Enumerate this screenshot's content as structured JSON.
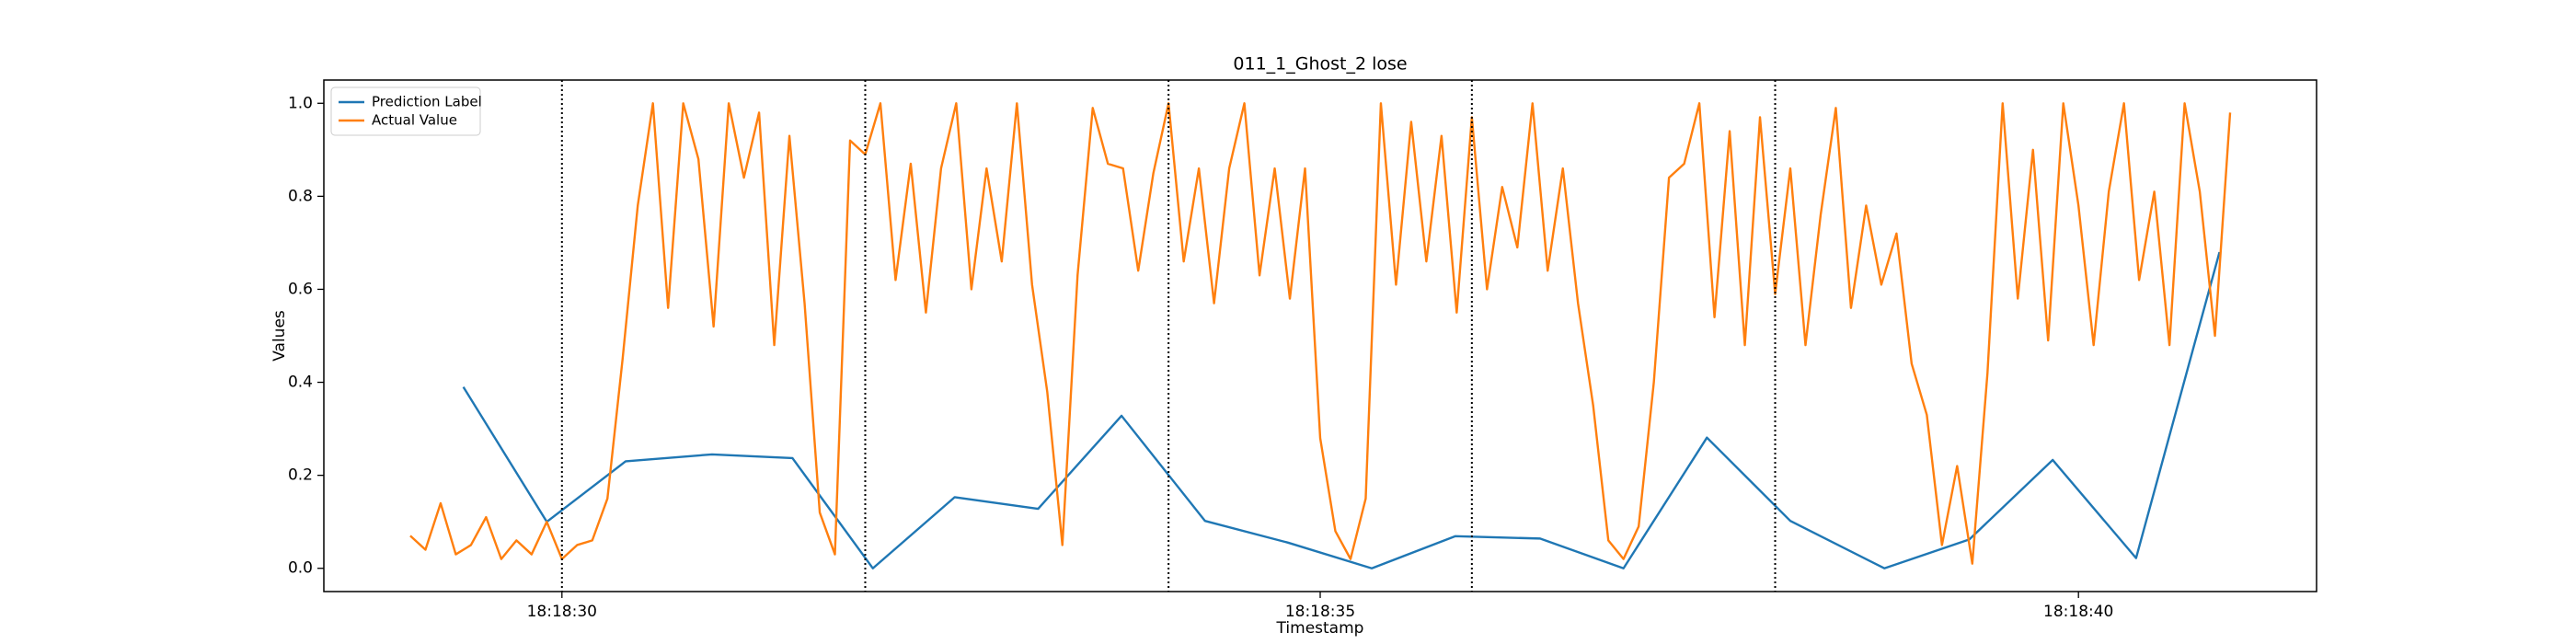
{
  "chart_data": {
    "type": "line",
    "title": "011_1_Ghost_2 lose",
    "x_label": "Timestamp",
    "y_label": "Values",
    "xlim": [
      28.43,
      41.57
    ],
    "ylim": [
      -0.05,
      1.05
    ],
    "xticks": [
      {
        "value": 30,
        "label": "18:18:30"
      },
      {
        "value": 35,
        "label": "18:18:35"
      },
      {
        "value": 40,
        "label": "18:18:40"
      }
    ],
    "yticks": [
      {
        "value": 0,
        "label": "0.0"
      },
      {
        "value": 0.2,
        "label": "0.2"
      },
      {
        "value": 0.4,
        "label": "0.4"
      },
      {
        "value": 0.6,
        "label": "0.6"
      },
      {
        "value": 0.8,
        "label": "0.8"
      },
      {
        "value": 1,
        "label": "1.0"
      }
    ],
    "vlines": [
      30,
      32,
      34,
      36,
      38
    ],
    "legend": "upper left",
    "series": [
      {
        "name": "Prediction Label",
        "color": "#1f77b4",
        "x": [
          29.35,
          29.9,
          30.42,
          30.99,
          31.52,
          32.05,
          32.59,
          33.14,
          33.69,
          34.24,
          34.79,
          35.34,
          35.89,
          36.45,
          37.0,
          37.55,
          38.1,
          38.72,
          39.28,
          39.83,
          40.38,
          40.93
        ],
        "values": [
          0.39,
          0.1,
          0.23,
          0.245,
          0.237,
          0.0,
          0.153,
          0.128,
          0.328,
          0.102,
          0.055,
          0.0,
          0.069,
          0.064,
          0.0,
          0.281,
          0.102,
          0.0,
          0.062,
          0.233,
          0.022,
          0.68
        ]
      },
      {
        "name": "Actual Value",
        "color": "#ff7f0e",
        "x": [
          29.0,
          29.1,
          29.2,
          29.3,
          29.4,
          29.5,
          29.6,
          29.7,
          29.8,
          29.9,
          30.0,
          30.1,
          30.2,
          30.3,
          30.4,
          30.5,
          30.6,
          30.7,
          30.8,
          30.9,
          31.0,
          31.1,
          31.2,
          31.3,
          31.4,
          31.5,
          31.6,
          31.7,
          31.8,
          31.9,
          32.0,
          32.1,
          32.2,
          32.3,
          32.4,
          32.5,
          32.6,
          32.7,
          32.8,
          32.9,
          33.0,
          33.1,
          33.2,
          33.3,
          33.4,
          33.5,
          33.6,
          33.7,
          33.8,
          33.9,
          34.0,
          34.1,
          34.2,
          34.3,
          34.4,
          34.5,
          34.6,
          34.7,
          34.8,
          34.9,
          35.0,
          35.1,
          35.2,
          35.3,
          35.4,
          35.5,
          35.6,
          35.7,
          35.8,
          35.9,
          36.0,
          36.1,
          36.2,
          36.3,
          36.4,
          36.5,
          36.6,
          36.7,
          36.8,
          36.9,
          37.0,
          37.1,
          37.2,
          37.3,
          37.4,
          37.5,
          37.6,
          37.7,
          37.8,
          37.9,
          38.0,
          38.1,
          38.2,
          38.3,
          38.4,
          38.5,
          38.6,
          38.7,
          38.8,
          38.9,
          39.0,
          39.1,
          39.2,
          39.3,
          39.4,
          39.5,
          39.6,
          39.7,
          39.8,
          39.9,
          40.0,
          40.1,
          40.2,
          40.3,
          40.4,
          40.5,
          40.6,
          40.7,
          40.8,
          40.9,
          41.0
        ],
        "values": [
          0.07,
          0.04,
          0.14,
          0.03,
          0.05,
          0.11,
          0.02,
          0.06,
          0.03,
          0.1,
          0.02,
          0.05,
          0.06,
          0.15,
          0.45,
          0.78,
          1.0,
          0.56,
          1.0,
          0.88,
          0.52,
          1.0,
          0.84,
          0.98,
          0.48,
          0.93,
          0.57,
          0.12,
          0.03,
          0.92,
          0.89,
          1.0,
          0.62,
          0.87,
          0.55,
          0.86,
          1.0,
          0.6,
          0.86,
          0.66,
          1.0,
          0.61,
          0.38,
          0.05,
          0.63,
          0.99,
          0.87,
          0.86,
          0.64,
          0.85,
          1.0,
          0.66,
          0.86,
          0.57,
          0.86,
          1.0,
          0.63,
          0.86,
          0.58,
          0.86,
          0.28,
          0.08,
          0.02,
          0.15,
          1.0,
          0.61,
          0.96,
          0.66,
          0.93,
          0.55,
          0.97,
          0.6,
          0.82,
          0.69,
          1.0,
          0.64,
          0.86,
          0.57,
          0.35,
          0.06,
          0.02,
          0.09,
          0.4,
          0.84,
          0.87,
          1.0,
          0.54,
          0.94,
          0.48,
          0.97,
          0.59,
          0.86,
          0.48,
          0.76,
          0.99,
          0.56,
          0.78,
          0.61,
          0.72,
          0.44,
          0.33,
          0.05,
          0.22,
          0.01,
          0.42,
          1.0,
          0.58,
          0.9,
          0.49,
          1.0,
          0.78,
          0.48,
          0.81,
          1.0,
          0.62,
          0.81,
          0.48,
          1.0,
          0.81,
          0.5,
          0.98
        ]
      }
    ]
  }
}
